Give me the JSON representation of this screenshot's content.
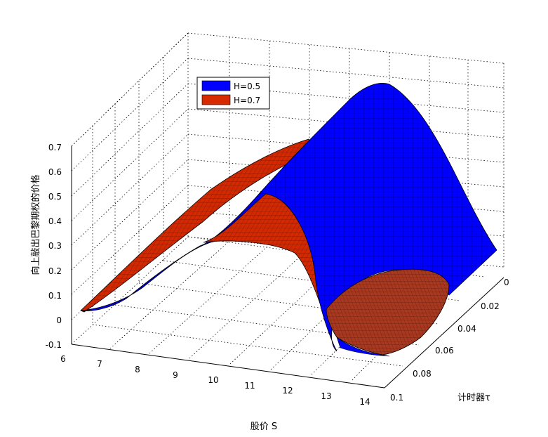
{
  "chart_data": {
    "type": "surface",
    "xlabel": "股价 S",
    "ylabel": "计时器τ",
    "zlabel": "向上敲出巴黎期权的价格",
    "xlim": [
      6,
      14
    ],
    "ylim": [
      0,
      0.1
    ],
    "zlim": [
      -0.1,
      0.7
    ],
    "x_ticks": [
      "6",
      "7",
      "8",
      "9",
      "10",
      "11",
      "12",
      "13",
      "14"
    ],
    "y_ticks": [
      "0",
      "0.02",
      "0.04",
      "0.06",
      "0.08",
      "0.1"
    ],
    "z_ticks": [
      "-0.1",
      "0",
      "0.1",
      "0.2",
      "0.3",
      "0.4",
      "0.5",
      "0.6",
      "0.7"
    ],
    "grid": true,
    "legend_position": "top-left",
    "series": [
      {
        "name": "H=0.5",
        "color": "#0000ff",
        "points": [
          {
            "S": 6.4,
            "tau": 0.1,
            "V": 0.04
          },
          {
            "S": 8.5,
            "tau": 0.1,
            "V": 0.18
          },
          {
            "S": 10.0,
            "tau": 0.1,
            "V": 0.42
          },
          {
            "S": 11.0,
            "tau": 0.1,
            "V": 0.05
          },
          {
            "S": 12.3,
            "tau": 0.1,
            "V": -0.05
          },
          {
            "S": 11.5,
            "tau": 0.0,
            "V": 0.62
          },
          {
            "S": 14.0,
            "tau": 0.0,
            "V": 0.05
          }
        ]
      },
      {
        "name": "H=0.7",
        "color": "#d82a00",
        "points": [
          {
            "S": 6.4,
            "tau": 0.1,
            "V": 0.04
          },
          {
            "S": 8.8,
            "tau": 0.1,
            "V": 0.27
          },
          {
            "S": 10.2,
            "tau": 0.1,
            "V": 0.3
          },
          {
            "S": 11.2,
            "tau": 0.1,
            "V": 0.03
          },
          {
            "S": 12.3,
            "tau": 0.1,
            "V": -0.04
          },
          {
            "S": 13.6,
            "tau": 0.05,
            "V": 0.05
          },
          {
            "S": 9.0,
            "tau": 0.0,
            "V": 0.55
          }
        ]
      }
    ]
  }
}
